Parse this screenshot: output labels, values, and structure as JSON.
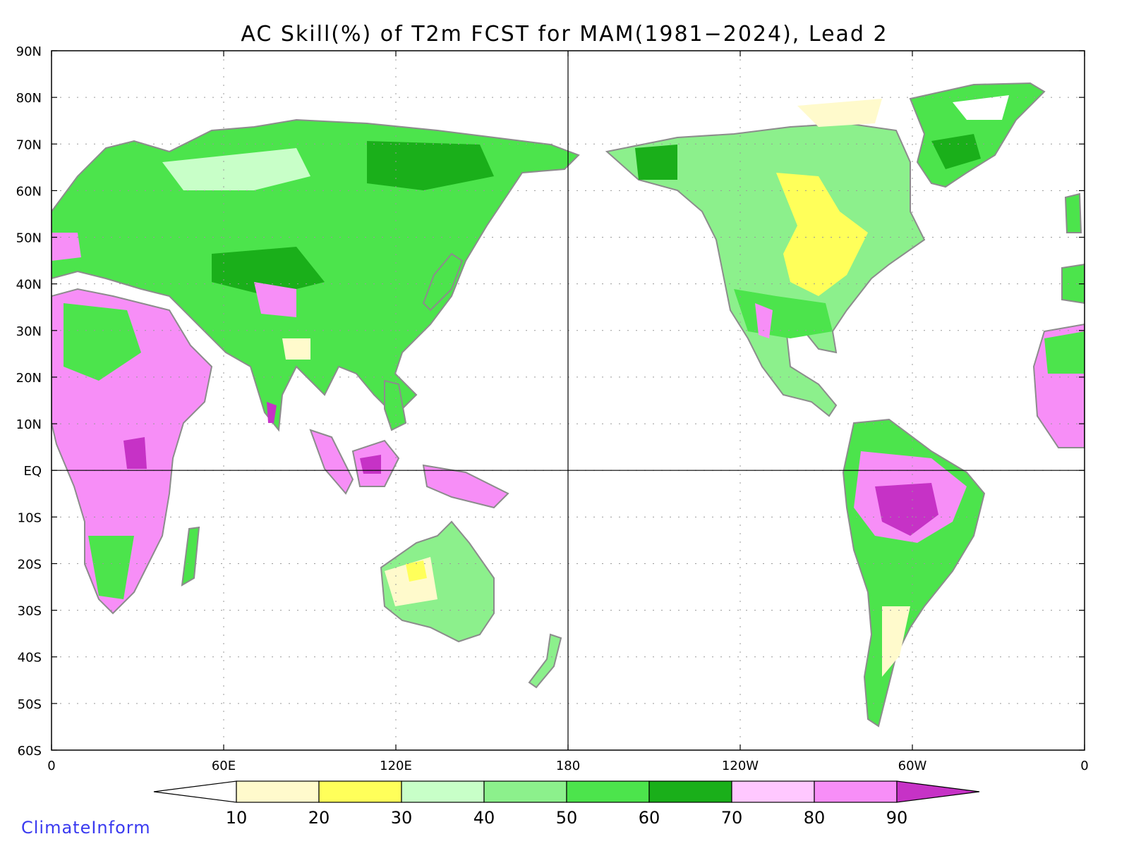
{
  "title": "AC Skill(%) of T2m FCST for MAM(1981−2024), Lead 2",
  "watermark": "ClimateInform",
  "map": {
    "type": "filled-map",
    "projection": "equirectangular",
    "lon_range": [
      0,
      360
    ],
    "lat_range": [
      -60,
      90
    ],
    "grid": true,
    "lat_ticks": [
      {
        "lat": 90,
        "label": "90N"
      },
      {
        "lat": 80,
        "label": "80N"
      },
      {
        "lat": 70,
        "label": "70N"
      },
      {
        "lat": 60,
        "label": "60N"
      },
      {
        "lat": 50,
        "label": "50N"
      },
      {
        "lat": 40,
        "label": "40N"
      },
      {
        "lat": 30,
        "label": "30N"
      },
      {
        "lat": 20,
        "label": "20N"
      },
      {
        "lat": 10,
        "label": "10N"
      },
      {
        "lat": 0,
        "label": "EQ"
      },
      {
        "lat": -10,
        "label": "10S"
      },
      {
        "lat": -20,
        "label": "20S"
      },
      {
        "lat": -30,
        "label": "30S"
      },
      {
        "lat": -40,
        "label": "40S"
      },
      {
        "lat": -50,
        "label": "50S"
      },
      {
        "lat": -60,
        "label": "60S"
      }
    ],
    "lon_ticks": [
      {
        "lon": 0,
        "label": "0"
      },
      {
        "lon": 60,
        "label": "60E"
      },
      {
        "lon": 120,
        "label": "120E"
      },
      {
        "lon": 180,
        "label": "180"
      },
      {
        "lon": 240,
        "label": "120W"
      },
      {
        "lon": 300,
        "label": "60W"
      },
      {
        "lon": 360,
        "label": "0"
      }
    ],
    "reference_lines": {
      "equator_lat": 0,
      "dateline_lon": 180
    },
    "colorbar": {
      "levels": [
        "10",
        "20",
        "30",
        "40",
        "50",
        "60",
        "70",
        "80",
        "90"
      ],
      "colors": [
        "#ffffff",
        "#fffacc",
        "#ffff5a",
        "#c8ffc8",
        "#8cf08c",
        "#4ce44c",
        "#1aaf1a",
        "#ffc8ff",
        "#f78ef7",
        "#c632c6"
      ]
    },
    "land_outline_color": "#8c8c8c"
  }
}
